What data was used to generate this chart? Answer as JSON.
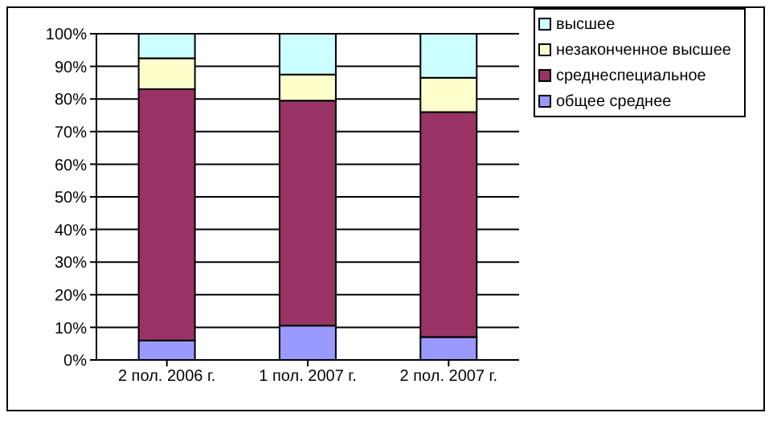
{
  "chart_data": {
    "type": "bar",
    "stacked": true,
    "categories": [
      "2 пол. 2006 г.",
      "1 пол. 2007 г.",
      "2 пол. 2007 г."
    ],
    "series": [
      {
        "name": "общее среднее",
        "color": "#9999ff",
        "values": [
          6,
          10.5,
          7
        ]
      },
      {
        "name": "среднеспециальное",
        "color": "#993366",
        "values": [
          77,
          69,
          69
        ]
      },
      {
        "name": "незаконченное высшее",
        "color": "#ffffcc",
        "values": [
          9.5,
          8,
          10.5
        ]
      },
      {
        "name": "высшее",
        "color": "#ccffff",
        "values": [
          7.5,
          12.5,
          13.5
        ]
      }
    ],
    "ylim": [
      0,
      100
    ],
    "yticks": [
      {
        "value": 0,
        "label": "0%"
      },
      {
        "value": 10,
        "label": "10%"
      },
      {
        "value": 20,
        "label": "20%"
      },
      {
        "value": 30,
        "label": "30%"
      },
      {
        "value": 40,
        "label": "40%"
      },
      {
        "value": 50,
        "label": "50%"
      },
      {
        "value": 60,
        "label": "60%"
      },
      {
        "value": 70,
        "label": "70%"
      },
      {
        "value": 80,
        "label": "80%"
      },
      {
        "value": 90,
        "label": "90%"
      },
      {
        "value": 100,
        "label": "100%"
      }
    ],
    "grid": "y",
    "legend": "top right"
  }
}
